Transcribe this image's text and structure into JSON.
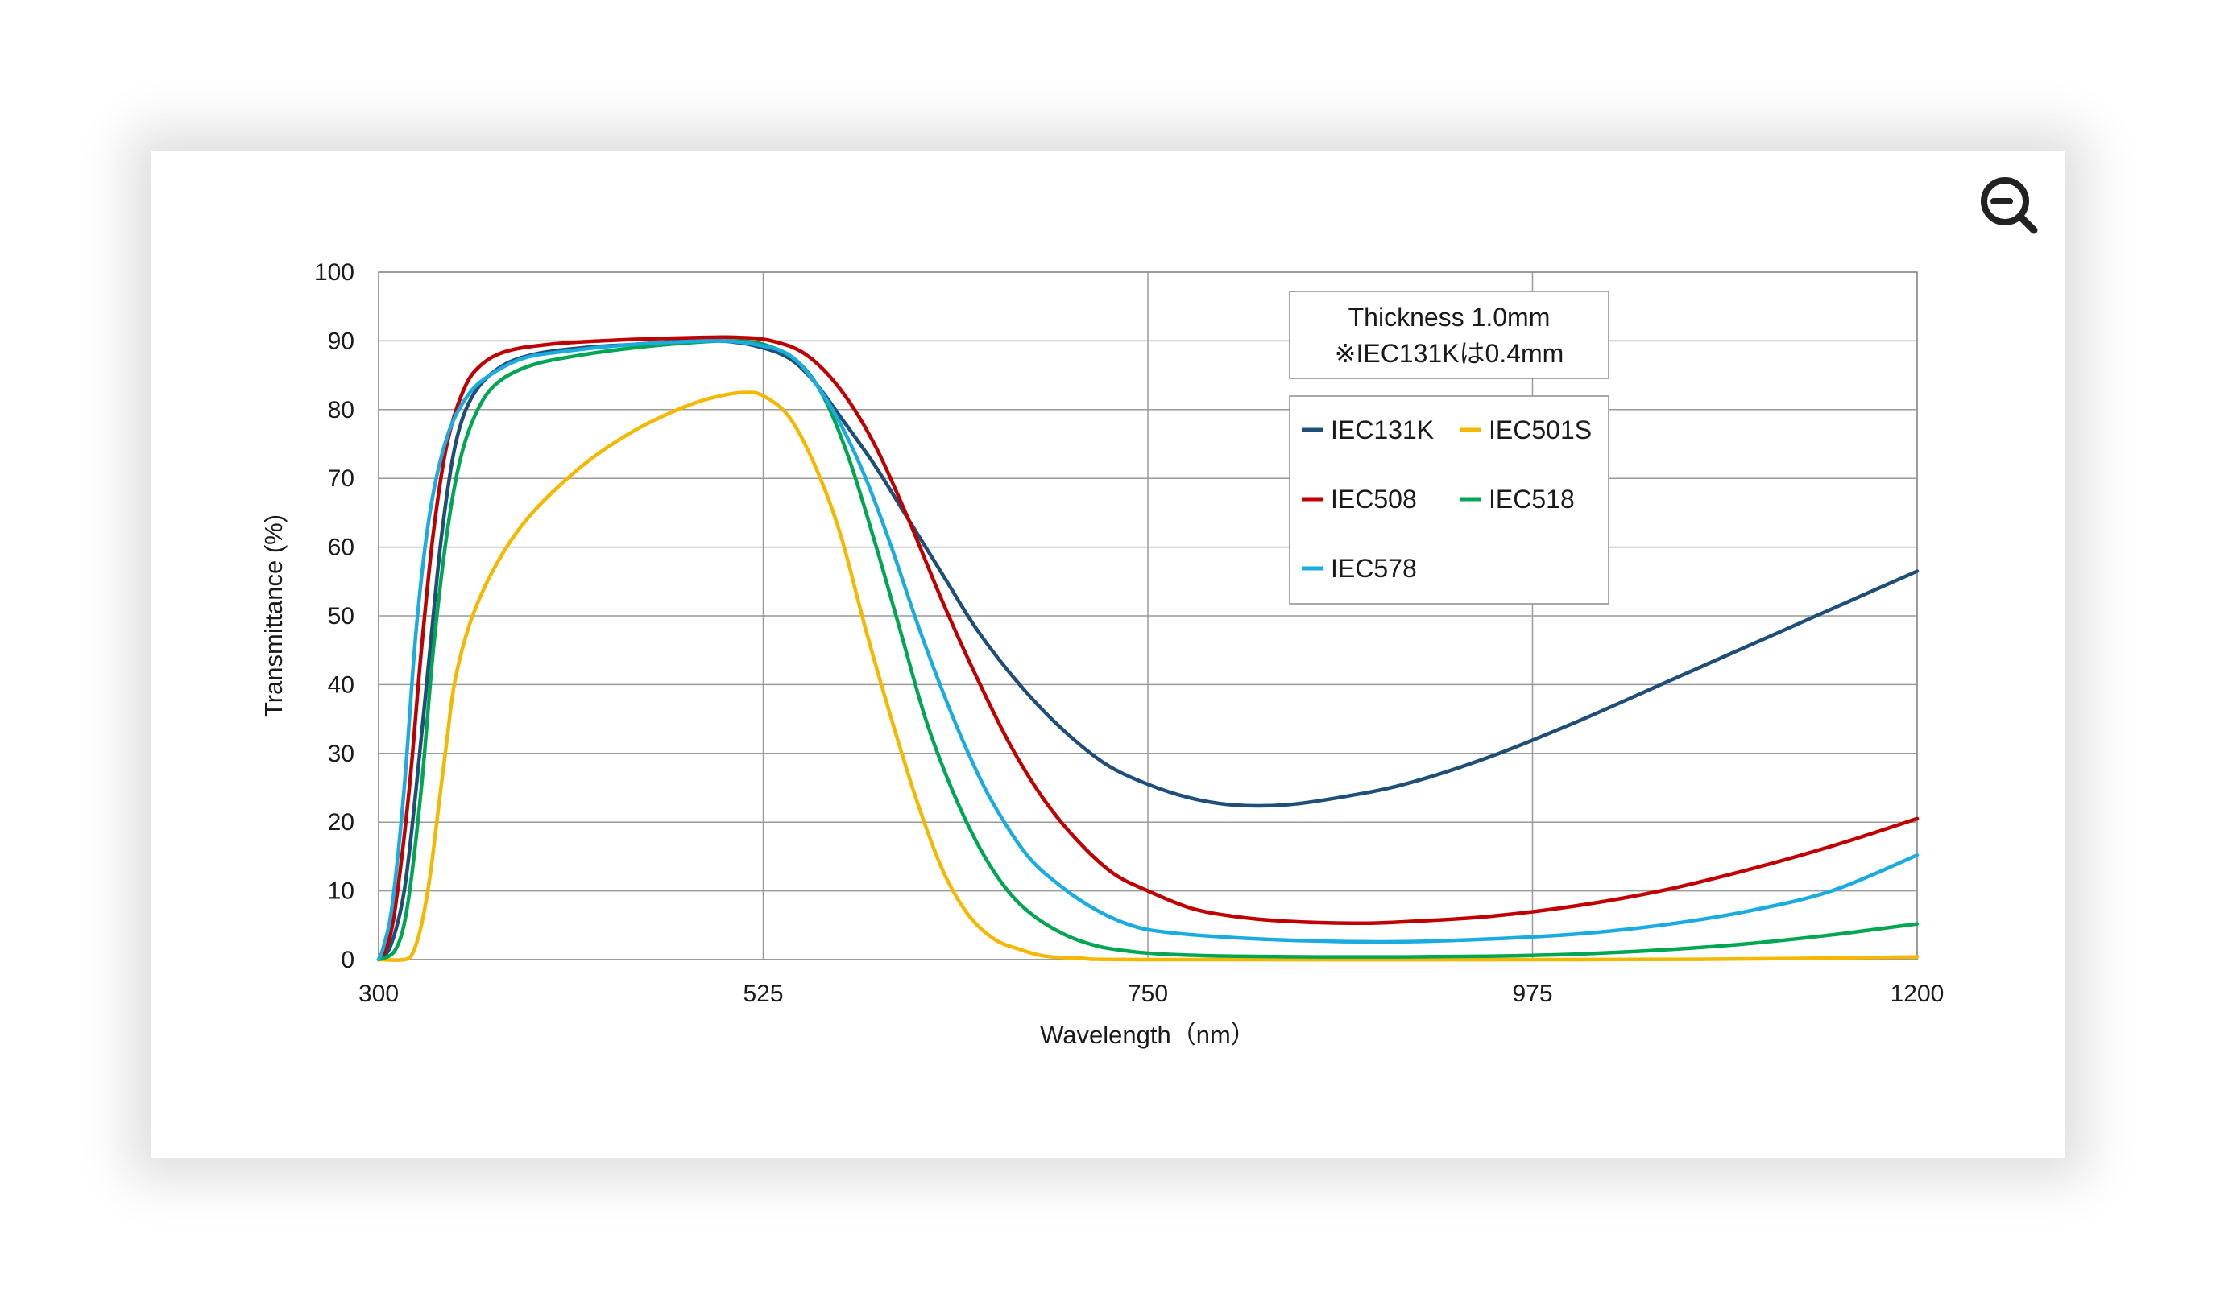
{
  "zoom": {
    "icon": "zoom-out-icon",
    "color": "#222222"
  },
  "chart_data": {
    "type": "line",
    "xlabel": "Wavelength（nm）",
    "ylabel": "Transmittance (%)",
    "xlim": [
      300,
      1200
    ],
    "ylim": [
      0,
      100
    ],
    "x_ticks": [
      300,
      525,
      750,
      975,
      1200
    ],
    "y_ticks": [
      0,
      10,
      20,
      30,
      40,
      50,
      60,
      70,
      80,
      90,
      100
    ],
    "grid": true,
    "note": [
      "Thickness  1.0mm",
      "※IEC131Kは0.4mm"
    ],
    "legend_position": "top-right",
    "series": [
      {
        "name": "IEC131K",
        "color": "#1f4e79",
        "points": [
          [
            300,
            0
          ],
          [
            307,
            2
          ],
          [
            315,
            10
          ],
          [
            322,
            25
          ],
          [
            330,
            45
          ],
          [
            337,
            62
          ],
          [
            345,
            75
          ],
          [
            355,
            82
          ],
          [
            370,
            86
          ],
          [
            390,
            88
          ],
          [
            420,
            89
          ],
          [
            450,
            89.5
          ],
          [
            480,
            90
          ],
          [
            500,
            90
          ],
          [
            520,
            89.3
          ],
          [
            540,
            87.5
          ],
          [
            555,
            84
          ],
          [
            570,
            79
          ],
          [
            590,
            72
          ],
          [
            610,
            64
          ],
          [
            630,
            56
          ],
          [
            650,
            48
          ],
          [
            675,
            40
          ],
          [
            700,
            33.5
          ],
          [
            725,
            28.5
          ],
          [
            750,
            25.5
          ],
          [
            775,
            23.5
          ],
          [
            800,
            22.5
          ],
          [
            830,
            22.5
          ],
          [
            860,
            23.5
          ],
          [
            900,
            25.5
          ],
          [
            950,
            29.5
          ],
          [
            1000,
            34.5
          ],
          [
            1050,
            40
          ],
          [
            1100,
            45.5
          ],
          [
            1150,
            51
          ],
          [
            1200,
            56.5
          ]
        ]
      },
      {
        "name": "IEC501S",
        "color": "#f5b800",
        "points": [
          [
            300,
            0
          ],
          [
            315,
            0
          ],
          [
            320,
            1
          ],
          [
            325,
            5
          ],
          [
            330,
            12
          ],
          [
            335,
            22
          ],
          [
            340,
            32
          ],
          [
            345,
            41
          ],
          [
            355,
            50
          ],
          [
            370,
            58
          ],
          [
            390,
            65
          ],
          [
            420,
            72
          ],
          [
            450,
            77
          ],
          [
            480,
            80.5
          ],
          [
            500,
            82
          ],
          [
            515,
            82.5
          ],
          [
            525,
            82
          ],
          [
            540,
            79
          ],
          [
            555,
            72
          ],
          [
            570,
            62
          ],
          [
            585,
            48
          ],
          [
            600,
            35
          ],
          [
            615,
            23
          ],
          [
            630,
            13
          ],
          [
            645,
            6.5
          ],
          [
            660,
            3
          ],
          [
            675,
            1.5
          ],
          [
            690,
            0.5
          ],
          [
            710,
            0.2
          ],
          [
            750,
            0
          ],
          [
            1000,
            0
          ],
          [
            1100,
            0.1
          ],
          [
            1200,
            0.4
          ]
        ]
      },
      {
        "name": "IEC508",
        "color": "#c00000",
        "points": [
          [
            300,
            0
          ],
          [
            305,
            2
          ],
          [
            310,
            8
          ],
          [
            318,
            25
          ],
          [
            325,
            45
          ],
          [
            332,
            62
          ],
          [
            340,
            75
          ],
          [
            350,
            83
          ],
          [
            360,
            86.5
          ],
          [
            375,
            88.5
          ],
          [
            400,
            89.5
          ],
          [
            430,
            90
          ],
          [
            460,
            90.3
          ],
          [
            490,
            90.5
          ],
          [
            510,
            90.5
          ],
          [
            530,
            90
          ],
          [
            550,
            88
          ],
          [
            570,
            83
          ],
          [
            590,
            75
          ],
          [
            610,
            64
          ],
          [
            630,
            52
          ],
          [
            650,
            41
          ],
          [
            670,
            31
          ],
          [
            690,
            23
          ],
          [
            710,
            17
          ],
          [
            730,
            12.5
          ],
          [
            750,
            10
          ],
          [
            775,
            7.5
          ],
          [
            800,
            6.3
          ],
          [
            830,
            5.6
          ],
          [
            870,
            5.3
          ],
          [
            900,
            5.5
          ],
          [
            950,
            6.3
          ],
          [
            1000,
            7.8
          ],
          [
            1050,
            10
          ],
          [
            1100,
            13
          ],
          [
            1150,
            16.5
          ],
          [
            1200,
            20.5
          ]
        ]
      },
      {
        "name": "IEC518",
        "color": "#00a651",
        "points": [
          [
            300,
            0
          ],
          [
            310,
            1.5
          ],
          [
            317,
            8
          ],
          [
            325,
            25
          ],
          [
            332,
            45
          ],
          [
            340,
            62
          ],
          [
            348,
            73
          ],
          [
            358,
            80
          ],
          [
            370,
            84
          ],
          [
            390,
            86.5
          ],
          [
            420,
            88
          ],
          [
            450,
            89
          ],
          [
            480,
            89.7
          ],
          [
            505,
            90
          ],
          [
            525,
            89.5
          ],
          [
            545,
            87
          ],
          [
            560,
            82
          ],
          [
            575,
            73
          ],
          [
            590,
            61
          ],
          [
            605,
            48
          ],
          [
            620,
            35
          ],
          [
            635,
            25
          ],
          [
            650,
            17
          ],
          [
            665,
            11
          ],
          [
            680,
            7
          ],
          [
            700,
            3.8
          ],
          [
            720,
            2
          ],
          [
            740,
            1.2
          ],
          [
            760,
            0.8
          ],
          [
            800,
            0.5
          ],
          [
            850,
            0.4
          ],
          [
            900,
            0.4
          ],
          [
            950,
            0.5
          ],
          [
            1000,
            0.8
          ],
          [
            1050,
            1.4
          ],
          [
            1100,
            2.3
          ],
          [
            1150,
            3.6
          ],
          [
            1200,
            5.2
          ]
        ]
      },
      {
        "name": "IEC578",
        "color": "#1aace0",
        "points": [
          [
            300,
            0
          ],
          [
            303,
            2
          ],
          [
            308,
            8
          ],
          [
            315,
            25
          ],
          [
            322,
            48
          ],
          [
            330,
            65
          ],
          [
            340,
            76
          ],
          [
            352,
            82
          ],
          [
            365,
            85
          ],
          [
            385,
            87.5
          ],
          [
            410,
            88.5
          ],
          [
            440,
            89.3
          ],
          [
            470,
            89.8
          ],
          [
            500,
            90
          ],
          [
            520,
            89.5
          ],
          [
            540,
            88
          ],
          [
            555,
            84
          ],
          [
            570,
            78
          ],
          [
            585,
            70
          ],
          [
            600,
            60
          ],
          [
            615,
            49
          ],
          [
            630,
            39
          ],
          [
            645,
            30
          ],
          [
            660,
            22.5
          ],
          [
            680,
            15
          ],
          [
            700,
            10.5
          ],
          [
            720,
            7.2
          ],
          [
            740,
            5
          ],
          [
            760,
            4
          ],
          [
            800,
            3.2
          ],
          [
            850,
            2.7
          ],
          [
            900,
            2.6
          ],
          [
            950,
            3
          ],
          [
            1000,
            3.7
          ],
          [
            1050,
            5
          ],
          [
            1100,
            7
          ],
          [
            1150,
            10
          ],
          [
            1200,
            15.2
          ]
        ]
      }
    ]
  }
}
